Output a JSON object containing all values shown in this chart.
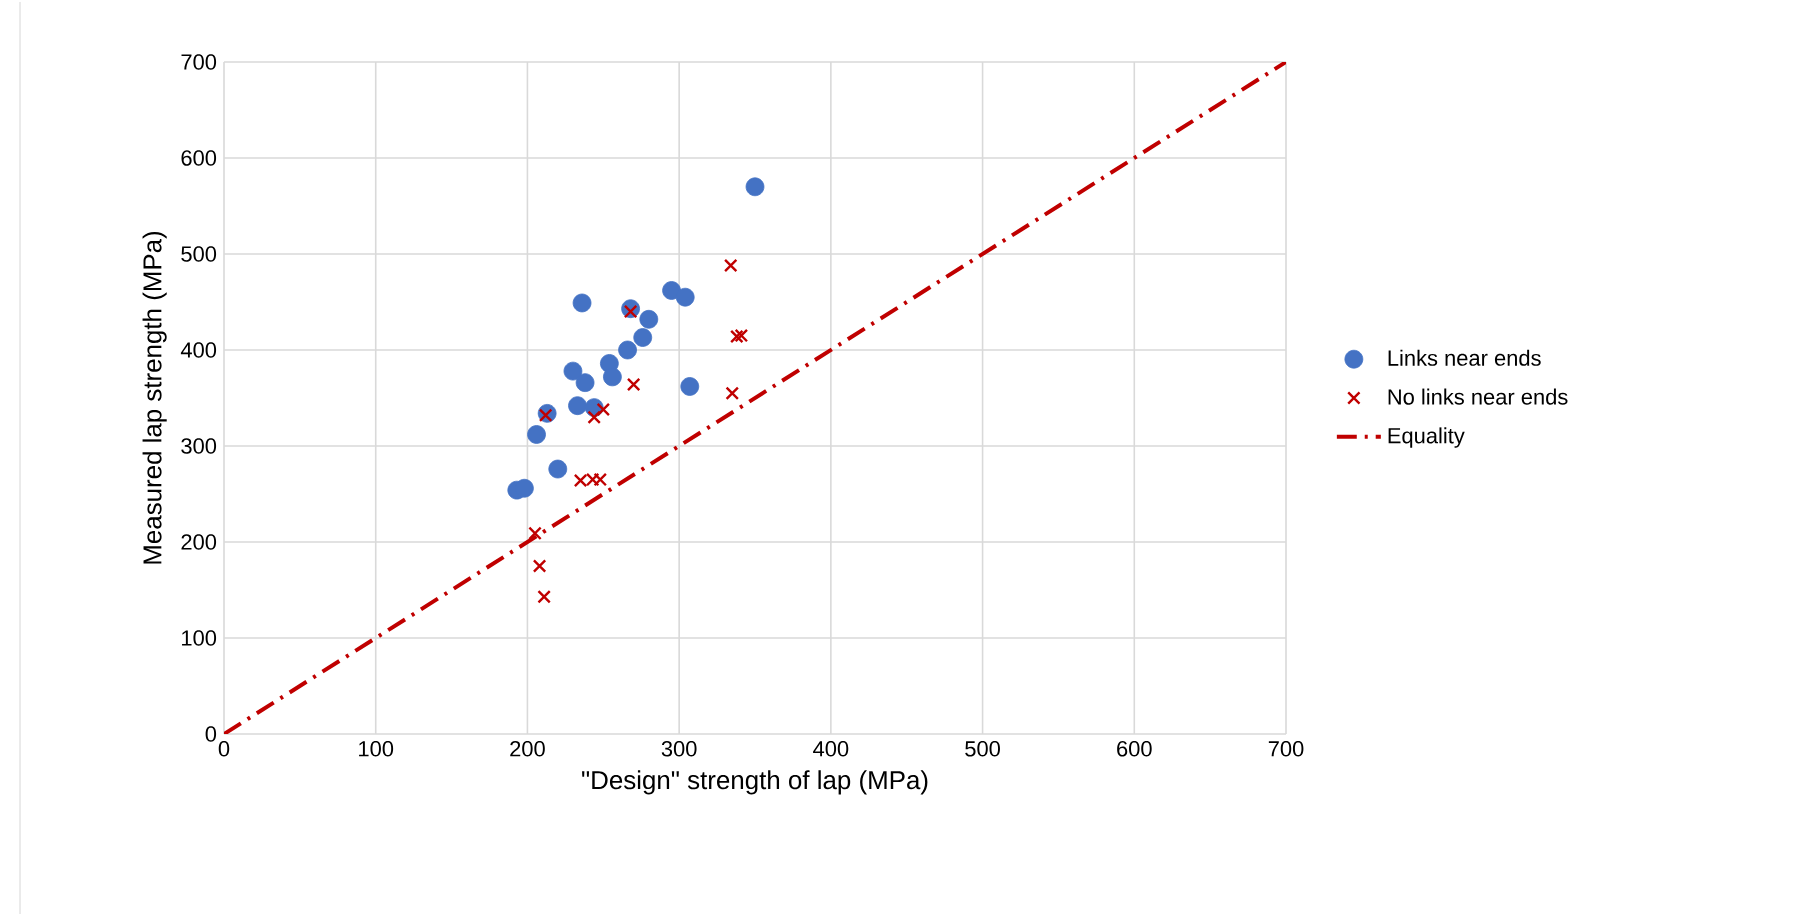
{
  "chart_data": {
    "type": "scatter",
    "xlabel": "\"Design\" strength of lap   (MPa)",
    "ylabel": "Measured lap strength  (MPa)",
    "xlim": [
      0,
      700
    ],
    "ylim": [
      0,
      700
    ],
    "xticks": [
      0,
      100,
      200,
      300,
      400,
      500,
      600,
      700
    ],
    "yticks": [
      0,
      100,
      200,
      300,
      400,
      500,
      600,
      700
    ],
    "grid": true,
    "legend": "right",
    "series": [
      {
        "name": "Links near ends",
        "color": "#4472c4",
        "marker": "circle",
        "x": [
          193,
          198,
          206,
          213,
          220,
          230,
          233,
          236,
          238,
          244,
          254,
          256,
          266,
          268,
          276,
          280,
          295,
          304,
          307,
          350
        ],
        "values": [
          254,
          256,
          312,
          334,
          276,
          378,
          342,
          449,
          366,
          340,
          386,
          372,
          400,
          443,
          413,
          432,
          462,
          455,
          362,
          570
        ]
      },
      {
        "name": "No links near ends",
        "color": "#c00000",
        "marker": "cross",
        "x": [
          205,
          208,
          211,
          212,
          235,
          243,
          244,
          248,
          250,
          268,
          270,
          334,
          335,
          338,
          341
        ],
        "values": [
          209,
          175,
          143,
          332,
          264,
          265,
          330,
          265,
          338,
          440,
          364,
          488,
          355,
          414,
          415
        ]
      },
      {
        "name": "Equality",
        "type": "line",
        "color": "#c00000",
        "marker": "none",
        "line_style": "dashdotted",
        "x": [
          0,
          700
        ],
        "values": [
          0,
          700
        ]
      }
    ]
  }
}
